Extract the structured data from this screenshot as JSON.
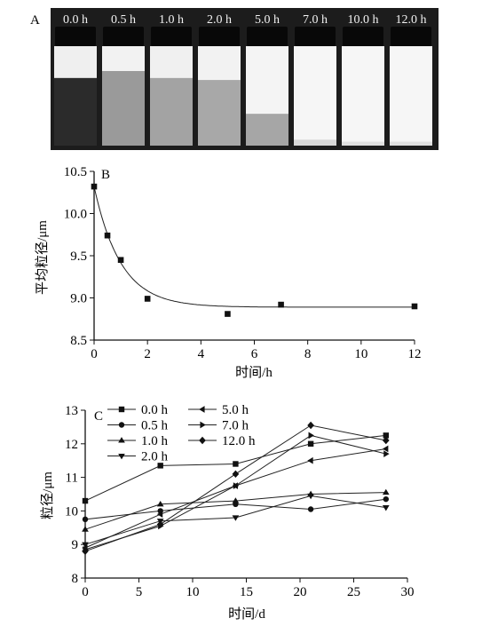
{
  "panel_a": {
    "letter": "A",
    "vials": [
      {
        "label": "0.0 h",
        "bottom_level": 0.68,
        "bottom_color": "#2b2b2b",
        "top_color": "#efefef"
      },
      {
        "label": "0.5 h",
        "bottom_level": 0.75,
        "bottom_color": "#9a9a9a",
        "top_color": "#f2f2f2"
      },
      {
        "label": "1.0 h",
        "bottom_level": 0.68,
        "bottom_color": "#a3a3a3",
        "top_color": "#f0f0f0"
      },
      {
        "label": "2.0 h",
        "bottom_level": 0.66,
        "bottom_color": "#a8a8a8",
        "top_color": "#f2f2f2"
      },
      {
        "label": "5.0 h",
        "bottom_level": 0.32,
        "bottom_color": "#a6a6a6",
        "top_color": "#f4f4f4"
      },
      {
        "label": "7.0 h",
        "bottom_level": 0.06,
        "bottom_color": "#d8d8d8",
        "top_color": "#f6f6f6"
      },
      {
        "label": "10.0 h",
        "bottom_level": 0.04,
        "bottom_color": "#e0e0e0",
        "top_color": "#f6f6f6"
      },
      {
        "label": "12.0 h",
        "bottom_level": 0.04,
        "bottom_color": "#e0e0e0",
        "top_color": "#f6f6f6"
      }
    ]
  },
  "chart_data": [
    {
      "panel": "B",
      "type": "scatter",
      "xlabel": "时间/h",
      "ylabel": "平均粒径/μm",
      "xlim": [
        0,
        12
      ],
      "ylim": [
        8.5,
        10.5
      ],
      "xticks": [
        "0",
        "2",
        "4",
        "6",
        "8",
        "10",
        "12"
      ],
      "yticks": [
        "8.5",
        "9.0",
        "9.5",
        "10.0",
        "10.5"
      ],
      "series": [
        {
          "marker": "square",
          "x": [
            0,
            0.5,
            1,
            2,
            5,
            7,
            12
          ],
          "y": [
            10.32,
            9.74,
            9.45,
            8.99,
            8.81,
            8.92,
            8.9
          ]
        }
      ],
      "fit_curve": {
        "form": "exponential_decay",
        "y0": 8.89,
        "a": 1.43,
        "k": 1.0
      }
    },
    {
      "panel": "C",
      "type": "line",
      "xlabel": "时间/d",
      "ylabel": "粒径/μm",
      "xlim": [
        0,
        30
      ],
      "ylim": [
        8,
        13
      ],
      "xticks": [
        "0",
        "5",
        "10",
        "15",
        "20",
        "25",
        "30"
      ],
      "yticks": [
        "8",
        "9",
        "10",
        "11",
        "12",
        "13"
      ],
      "x": [
        0,
        7,
        14,
        21,
        28
      ],
      "legend_columns": 2,
      "series": [
        {
          "name": "0.0 h",
          "marker": "square",
          "values": [
            10.3,
            11.35,
            11.4,
            12.0,
            12.25
          ]
        },
        {
          "name": "0.5 h",
          "marker": "circle",
          "values": [
            9.75,
            10.0,
            10.2,
            10.05,
            10.35
          ]
        },
        {
          "name": "1.0 h",
          "marker": "triangle-up",
          "values": [
            9.45,
            10.2,
            10.3,
            10.5,
            10.55
          ]
        },
        {
          "name": "2.0 h",
          "marker": "triangle-down",
          "values": [
            9.0,
            9.7,
            9.8,
            10.45,
            10.1
          ]
        },
        {
          "name": "5.0 h",
          "marker": "triangle-left",
          "values": [
            8.9,
            9.9,
            10.75,
            11.5,
            11.85
          ]
        },
        {
          "name": "7.0 h",
          "marker": "triangle-right",
          "values": [
            8.85,
            9.55,
            10.75,
            12.25,
            11.7
          ]
        },
        {
          "name": "12.0 h",
          "marker": "diamond",
          "values": [
            8.8,
            9.6,
            11.1,
            12.55,
            12.1
          ]
        }
      ]
    }
  ]
}
